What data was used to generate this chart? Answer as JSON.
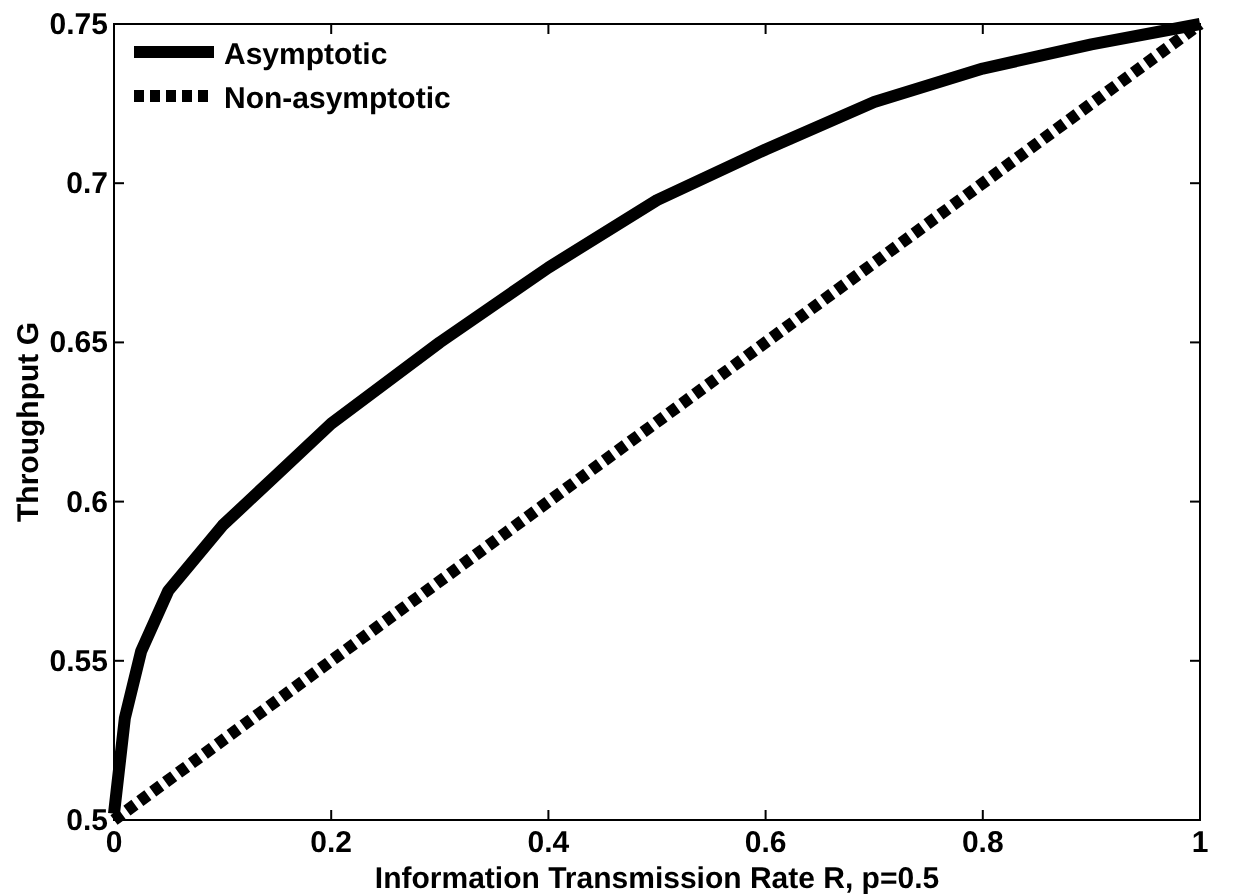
{
  "chart_data": {
    "type": "line",
    "xlabel": "Information Transmission Rate R, p=0.5",
    "ylabel": "Throughput G",
    "xlim": [
      0,
      1
    ],
    "xticks": [
      0,
      0.2,
      0.4,
      0.6,
      0.8,
      1
    ],
    "ylim": [
      0.5,
      0.75
    ],
    "yticks": [
      0.5,
      0.55,
      0.6,
      0.65,
      0.7,
      0.75
    ],
    "grid": false,
    "legend": "top left",
    "marker": "none",
    "series": [
      {
        "name": "Asymptotic",
        "color": "#000000",
        "line_style": "solid",
        "x": [
          0,
          0.01,
          0.025,
          0.05,
          0.1,
          0.15,
          0.2,
          0.3,
          0.4,
          0.5,
          0.6,
          0.7,
          0.8,
          0.9,
          1
        ],
        "values": [
          0.502,
          0.532,
          0.553,
          0.572,
          0.5925,
          0.6085,
          0.6245,
          0.65,
          0.6735,
          0.6947,
          0.7106,
          0.7255,
          0.736,
          0.7436,
          0.75
        ]
      },
      {
        "name": "Non-asymptotic",
        "color": "#000000",
        "line_style": "dotted",
        "x": [
          0,
          1
        ],
        "values": [
          0.5,
          0.75
        ]
      }
    ]
  }
}
